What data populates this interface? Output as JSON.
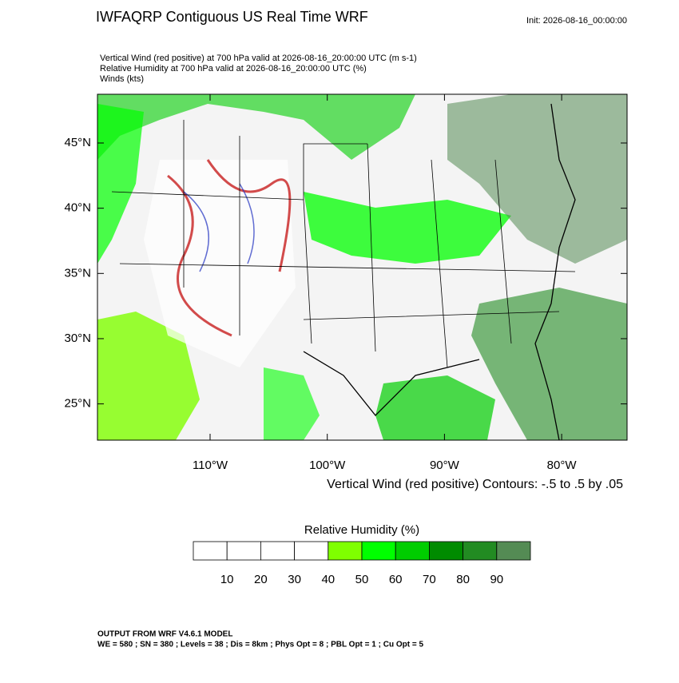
{
  "header": {
    "title": "IWFAQRP Contiguous US Real Time WRF",
    "init": "Init: 2026-08-16_00:00:00"
  },
  "subtitles": [
    "Vertical Wind (red positive) at 700 hPa valid at 2026-08-16_20:00:00 UTC   (m s-1)",
    "Relative Humidity at 700 hPa valid at 2026-08-16_20:00:00 UTC   (%)",
    "Winds   (kts)"
  ],
  "map": {
    "lon_ticks": [
      {
        "value": -110,
        "label": "110°W"
      },
      {
        "value": -100,
        "label": "100°W"
      },
      {
        "value": -90,
        "label": "90°W"
      },
      {
        "value": -80,
        "label": "80°W"
      }
    ],
    "lat_ticks": [
      {
        "value": 45,
        "label": "45°N"
      },
      {
        "value": 40,
        "label": "40°N"
      },
      {
        "value": 35,
        "label": "35°N"
      },
      {
        "value": 30,
        "label": "30°N"
      },
      {
        "value": 25,
        "label": "25°N"
      }
    ],
    "contour_note": "Vertical Wind (red positive) Contours: -.5 to .5 by .05"
  },
  "colorbar": {
    "title": "Relative Humidity  (%)",
    "levels": [
      10,
      20,
      30,
      40,
      50,
      60,
      70,
      80,
      90
    ],
    "colors": [
      "#ffffff",
      "#ffffff",
      "#ffffff",
      "#ffffff",
      "#7fff00",
      "#00ff00",
      "#00cd00",
      "#008b00",
      "#228b22",
      "#548b54"
    ]
  },
  "footer": [
    "OUTPUT FROM WRF V4.6.1 MODEL",
    "WE = 580 ; SN = 380 ; Levels = 38 ; Dis = 8km ; Phys Opt = 8 ; PBL Opt = 1 ; Cu Opt = 5"
  ]
}
